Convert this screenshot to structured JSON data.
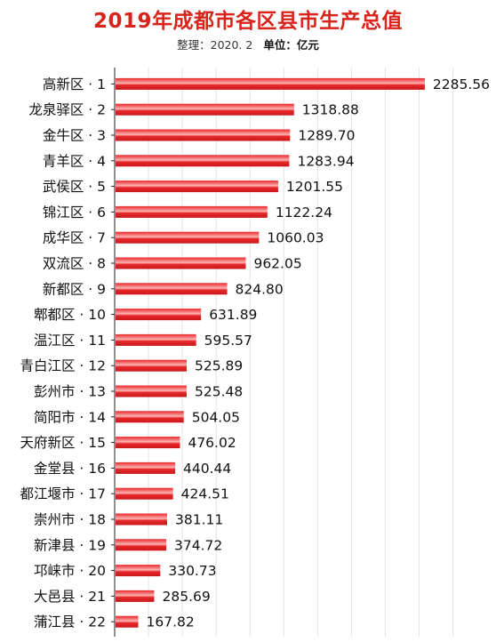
{
  "chart_data": {
    "type": "bar",
    "orientation": "horizontal",
    "title": "2019年成都市各区县市生产总值",
    "subtitle_note": "整理：2020. 2",
    "subtitle_unit": "单位：亿元",
    "categories": [
      "高新区 · 1",
      "龙泉驿区 · 2",
      "金牛区 · 3",
      "青羊区 · 4",
      "武侯区 · 5",
      "锦江区 · 6",
      "成华区 · 7",
      "双流区 · 8",
      "新都区 · 9",
      "郫都区 · 10",
      "温江区 · 11",
      "青白江区 · 12",
      "彭州市 · 13",
      "简阳市 · 14",
      "天府新区 · 15",
      "金堂县 · 16",
      "都江堰市 · 17",
      "崇州市 · 18",
      "新津县 · 19",
      "邛崃市 · 20",
      "大邑县 · 21",
      "蒲江县 · 22"
    ],
    "values": [
      2285.56,
      1318.88,
      1289.7,
      1283.94,
      1201.55,
      1122.24,
      1060.03,
      962.05,
      824.8,
      631.89,
      595.57,
      525.89,
      525.48,
      504.05,
      476.02,
      440.44,
      424.51,
      381.11,
      374.72,
      330.73,
      285.69,
      167.82
    ],
    "value_labels": [
      "2285.56",
      "1318.88",
      "1289.70",
      "1283.94",
      "1201.55",
      "1122.24",
      "1060.03",
      "962.05",
      "824.80",
      "631.89",
      "595.57",
      "525.89",
      "525.48",
      "504.05",
      "476.02",
      "440.44",
      "424.51",
      "381.11",
      "374.72",
      "330.73",
      "285.69",
      "167.82"
    ],
    "xlim": [
      0,
      2500
    ],
    "grid": true,
    "bar_color": "#e8272a",
    "bar_highlight": "#ffb3b3",
    "title_color": "#d9241c"
  }
}
